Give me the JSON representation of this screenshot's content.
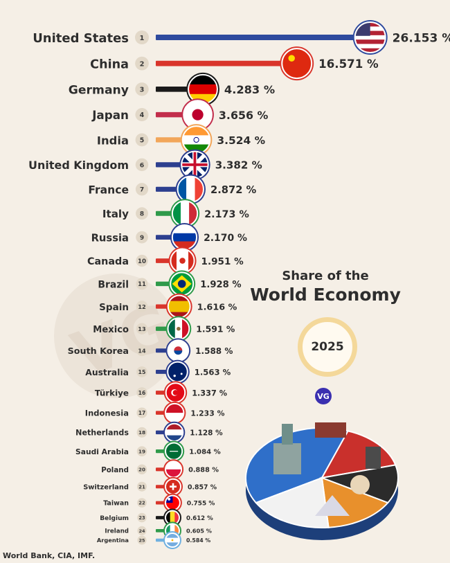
{
  "title": {
    "line1": "Share of the",
    "line2": "World Economy"
  },
  "year": "2025",
  "logo": "VG",
  "watermark": "VG",
  "source": "World Bank, CIA, IMF.",
  "chart_data": {
    "type": "bar",
    "orientation": "horizontal",
    "unit": "%",
    "categories": [
      "United States",
      "China",
      "Germany",
      "Japan",
      "India",
      "United Kingdom",
      "France",
      "Italy",
      "Russia",
      "Canada",
      "Brazil",
      "Spain",
      "Mexico",
      "South Korea",
      "Australia",
      "Türkiye",
      "Indonesia",
      "Netherlands",
      "Saudi Arabia",
      "Poland",
      "Switzerland",
      "Taiwan",
      "Belgium",
      "Ireland",
      "Argentina"
    ],
    "ranks": [
      "1",
      "2",
      "3",
      "4",
      "5",
      "6",
      "7",
      "8",
      "9",
      "10",
      "11",
      "12",
      "13",
      "14",
      "15",
      "16",
      "17",
      "18",
      "19",
      "20",
      "21",
      "22",
      "23",
      "24",
      "25"
    ],
    "values": [
      26.153,
      16.571,
      4.283,
      3.656,
      3.524,
      3.382,
      2.872,
      2.173,
      2.17,
      1.951,
      1.928,
      1.616,
      1.591,
      1.588,
      1.563,
      1.337,
      1.233,
      1.128,
      1.084,
      0.888,
      0.857,
      0.755,
      0.612,
      0.605,
      0.584
    ],
    "value_labels": [
      "26.153 %",
      "16.571 %",
      "4.283 %",
      "3.656 %",
      "3.524 %",
      "3.382 %",
      "2.872 %",
      "2.173 %",
      "2.170 %",
      "1.951 %",
      "1.928 %",
      "1.616 %",
      "1.591 %",
      "1.588 %",
      "1.563 %",
      "1.337 %",
      "1.233 %",
      "1.128 %",
      "1.084 %",
      "0.888 %",
      "0.857 %",
      "0.755 %",
      "0.612 %",
      "0.605 %",
      "0.584 %"
    ],
    "bar_colors": [
      "#2e4a9e",
      "#d9352b",
      "#1a1a1a",
      "#c22d4b",
      "#f2a65a",
      "#2d3f8f",
      "#2d3f8f",
      "#2f9a4a",
      "#2d3f8f",
      "#d9352b",
      "#2f9a4a",
      "#d9352b",
      "#2f9a4a",
      "#2d3f8f",
      "#2d3f8f",
      "#d9352b",
      "#d9352b",
      "#2d3f8f",
      "#2f9a4a",
      "#d9352b",
      "#d9352b",
      "#d9352b",
      "#1a1a1a",
      "#2f9a4a",
      "#6fb0e0"
    ],
    "flag_icons": [
      "flag-united-states-icon",
      "flag-china-icon",
      "flag-germany-icon",
      "flag-japan-icon",
      "flag-india-icon",
      "flag-united-kingdom-icon",
      "flag-france-icon",
      "flag-italy-icon",
      "flag-russia-icon",
      "flag-canada-icon",
      "flag-brazil-icon",
      "flag-spain-icon",
      "flag-mexico-icon",
      "flag-south-korea-icon",
      "flag-australia-icon",
      "flag-turkiye-icon",
      "flag-indonesia-icon",
      "flag-netherlands-icon",
      "flag-saudi-arabia-icon",
      "flag-poland-icon",
      "flag-switzerland-icon",
      "flag-taiwan-icon",
      "flag-belgium-icon",
      "flag-ireland-icon",
      "flag-argentina-icon"
    ],
    "pie_colors": [
      "#2f6fc9",
      "#c9302c",
      "#2b2b2b",
      "#e8902c",
      "#f2f2f2"
    ]
  }
}
